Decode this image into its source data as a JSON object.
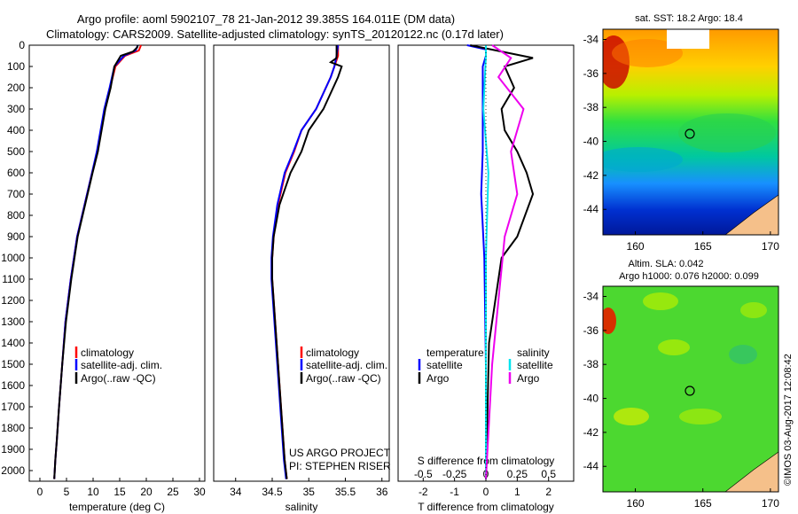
{
  "title_line1": "Argo profile: aoml 5902107_78 21-Jan-2012 39.385S 164.011E (DM data)",
  "title_line2": "Climatology: CARS2009. Satellite-adjusted climatology: synTS_20120122.nc (0.17d later)",
  "colors": {
    "climatology": "#ff0000",
    "satellite": "#0000ff",
    "argo": "#000000",
    "sal_satellite": "#00e5ee",
    "sal_argo": "#ee00ee",
    "land": "#f5c08a"
  },
  "depth_ticks": [
    "0",
    "100",
    "200",
    "300",
    "400",
    "500",
    "600",
    "700",
    "800",
    "900",
    "1000",
    "1100",
    "1200",
    "1300",
    "1400",
    "1500",
    "1600",
    "1700",
    "1800",
    "1900",
    "2000"
  ],
  "panel1": {
    "xlabel": "temperature (deg C)",
    "xticks": [
      "0",
      "5",
      "10",
      "15",
      "20",
      "25",
      "30"
    ],
    "legend": [
      "climatology",
      "satellite-adj. clim.",
      "Argo(..raw -QC)"
    ]
  },
  "panel2": {
    "xlabel": "salinity",
    "xticks": [
      "34",
      "34.5",
      "35",
      "35.5",
      "36"
    ],
    "legend": [
      "climatology",
      "satellite-adj. clim.",
      "Argo(..raw -QC)"
    ],
    "note_line1": "US ARGO PROJECT",
    "note_line2": "PI: STEPHEN RISER"
  },
  "panel3": {
    "xlabel": "T difference from climatology",
    "xticks": [
      "-2",
      "-1",
      "0",
      "1",
      "2"
    ],
    "top_label": "S difference from climatology",
    "top_ticks": [
      "-0.5",
      "-0.25",
      "0",
      "0.25",
      "0.5"
    ],
    "legend_temp_header": "temperature",
    "legend_sal_header": "salinity",
    "legend_temp": [
      "satellite",
      "Argo"
    ],
    "legend_sal": [
      "satellite",
      "Argo"
    ]
  },
  "map1": {
    "title": "sat. SST: 18.2 Argo: 18.4",
    "yticks": [
      "-34",
      "-36",
      "-38",
      "-40",
      "-42",
      "-44"
    ],
    "xticks": [
      "160",
      "165",
      "170"
    ]
  },
  "map2": {
    "title_line1": "Altim. SLA: 0.042",
    "title_line2": "Argo h1000: 0.076 h2000: 0.099",
    "yticks": [
      "-34",
      "-36",
      "-38",
      "-40",
      "-42",
      "-44"
    ],
    "xticks": [
      "160",
      "165",
      "170"
    ]
  },
  "side_stamp": "©IMOS 03-Aug-2017 12:08:42",
  "chart_data": [
    {
      "type": "line",
      "ylabel": "",
      "xlabel": "temperature (deg C)",
      "xlim": [
        -2,
        31
      ],
      "ylim": [
        2050,
        0
      ],
      "series": [
        {
          "name": "climatology",
          "x": [
            19.0,
            18.6,
            16.0,
            14.2,
            13.2,
            12.2,
            11.5,
            10.8,
            9.8,
            8.4,
            7.0,
            5.8,
            4.8,
            4.2,
            3.6,
            3.2,
            2.9,
            2.7
          ],
          "y": [
            0,
            25,
            50,
            100,
            200,
            300,
            400,
            500,
            600,
            750,
            900,
            1100,
            1300,
            1500,
            1700,
            1850,
            1950,
            2040
          ]
        },
        {
          "name": "satellite-adj. clim.",
          "x": [
            18.4,
            18.0,
            15.8,
            14.0,
            13.1,
            12.1,
            11.4,
            10.7,
            9.8,
            8.4,
            7.0,
            5.8,
            4.8,
            4.2,
            3.6,
            3.2,
            2.9,
            2.7
          ],
          "y": [
            0,
            25,
            50,
            100,
            200,
            300,
            400,
            500,
            600,
            750,
            900,
            1100,
            1300,
            1500,
            1700,
            1850,
            1950,
            2040
          ]
        },
        {
          "name": "Argo(..raw -QC)",
          "x": [
            18.4,
            18.3,
            17.5,
            15.2,
            14.0,
            13.3,
            12.3,
            11.6,
            10.9,
            9.9,
            8.5,
            7.1,
            5.9,
            4.9,
            4.2,
            3.6,
            3.2,
            2.9,
            2.7
          ],
          "y": [
            0,
            10,
            30,
            50,
            100,
            200,
            300,
            400,
            500,
            600,
            750,
            900,
            1100,
            1300,
            1500,
            1700,
            1850,
            1950,
            2040
          ]
        }
      ]
    },
    {
      "type": "line",
      "xlabel": "salinity",
      "xlim": [
        33.7,
        36.1
      ],
      "ylim": [
        2050,
        0
      ],
      "series": [
        {
          "name": "climatology",
          "x": [
            35.4,
            35.4,
            35.35,
            35.3,
            35.1,
            34.9,
            34.8,
            34.68,
            34.58,
            34.52,
            34.5,
            34.5,
            34.52,
            34.56,
            34.6,
            34.64,
            34.67,
            34.7
          ],
          "y": [
            0,
            50,
            100,
            150,
            300,
            400,
            500,
            600,
            750,
            900,
            1000,
            1100,
            1200,
            1400,
            1600,
            1800,
            1950,
            2040
          ]
        },
        {
          "name": "satellite-adj. clim.",
          "x": [
            35.4,
            35.38,
            35.35,
            35.3,
            35.1,
            34.9,
            34.79,
            34.67,
            34.57,
            34.51,
            34.49,
            34.49,
            34.51,
            34.55,
            34.59,
            34.63,
            34.66,
            34.69
          ],
          "y": [
            0,
            50,
            100,
            150,
            300,
            400,
            500,
            600,
            750,
            900,
            1000,
            1100,
            1200,
            1400,
            1600,
            1800,
            1950,
            2040
          ]
        },
        {
          "name": "Argo(..raw -QC)",
          "x": [
            35.38,
            35.38,
            35.3,
            35.45,
            35.4,
            35.2,
            35.0,
            34.9,
            34.75,
            34.6,
            34.52,
            34.5,
            34.5,
            34.52,
            34.56,
            34.6,
            34.64,
            34.67,
            34.7
          ],
          "y": [
            0,
            60,
            80,
            100,
            150,
            300,
            400,
            500,
            600,
            750,
            900,
            1000,
            1100,
            1200,
            1400,
            1600,
            1800,
            1950,
            2040
          ]
        }
      ]
    },
    {
      "type": "line",
      "xlabel": "T difference from climatology",
      "xlim": [
        -2.8,
        2.8
      ],
      "ylim": [
        2050,
        0
      ],
      "series": [
        {
          "name": "temperature satellite",
          "x": [
            -0.6,
            0.0,
            0.0,
            -0.1,
            -0.1,
            -0.15,
            -0.05,
            0.0,
            0.0
          ],
          "y": [
            0,
            20,
            50,
            100,
            500,
            700,
            1000,
            1500,
            2040
          ]
        },
        {
          "name": "temperature Argo",
          "x": [
            -0.5,
            1.5,
            0.6,
            0.9,
            0.5,
            0.6,
            1.0,
            1.3,
            1.5,
            1.0,
            0.5,
            0.3,
            0.1,
            0.0
          ],
          "y": [
            0,
            60,
            100,
            200,
            300,
            400,
            500,
            600,
            700,
            900,
            1000,
            1200,
            1400,
            2040
          ]
        },
        {
          "name": "salinity satellite",
          "x": [
            0.0,
            0.0,
            -0.02,
            0.02,
            0.0,
            0.0,
            0.0
          ],
          "y": [
            0,
            50,
            300,
            600,
            1000,
            1500,
            2040
          ]
        },
        {
          "name": "salinity Argo",
          "x": [
            0.05,
            0.2,
            0.1,
            0.3,
            0.2,
            0.25,
            0.15,
            0.1,
            0.05,
            0.0
          ],
          "y": [
            0,
            60,
            150,
            300,
            500,
            700,
            900,
            1200,
            1500,
            2040
          ]
        }
      ]
    }
  ]
}
